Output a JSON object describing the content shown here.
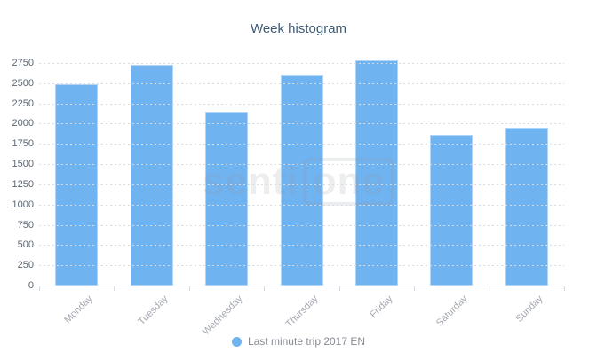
{
  "title": "Week histogram",
  "watermark": {
    "prefix": "senti",
    "boxed": "one"
  },
  "legend": {
    "items": [
      {
        "label": "Last minute trip 2017 EN"
      }
    ]
  },
  "colors": {
    "bar": "#6fb3f1",
    "title": "#3e5975",
    "ylabel": "#5c6672",
    "xlabel": "#a4a8b1",
    "legend": "#868b94",
    "grid": "#dadbe0",
    "axis": "#d8dae0",
    "watermark": "rgba(150,156,168,0.18)"
  },
  "chart_data": {
    "type": "bar",
    "title": "Week histogram",
    "categories": [
      "Monday",
      "Tuesday",
      "Wednesday",
      "Thursday",
      "Friday",
      "Saturday",
      "Sunday"
    ],
    "series": [
      {
        "name": "Last minute trip 2017 EN",
        "values": [
          2490,
          2730,
          2150,
          2600,
          2780,
          1860,
          1950
        ]
      }
    ],
    "xlabel": "",
    "ylabel": "",
    "ylim": [
      0,
      2750
    ],
    "y_tick_step": 250,
    "y_tick_labels": [
      "0",
      "250",
      "500",
      "750",
      "1000",
      "1250",
      "1500",
      "1750",
      "2000",
      "2250",
      "2500",
      "2750"
    ],
    "grid": "dotted-horizontal",
    "gridlines_over_bars": true,
    "x_label_rotation": -45,
    "legend_position": "bottom-center"
  }
}
